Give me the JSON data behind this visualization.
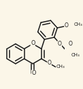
{
  "bg_color": "#fbf6e8",
  "line_color": "#1a1a1a",
  "line_width": 1.1,
  "figsize": [
    1.22,
    1.31
  ],
  "dpi": 100,
  "font_size": 5.8,
  "bond_color": "#1a1a1a",
  "xlim": [
    0,
    1
  ],
  "ylim": [
    0,
    1
  ]
}
